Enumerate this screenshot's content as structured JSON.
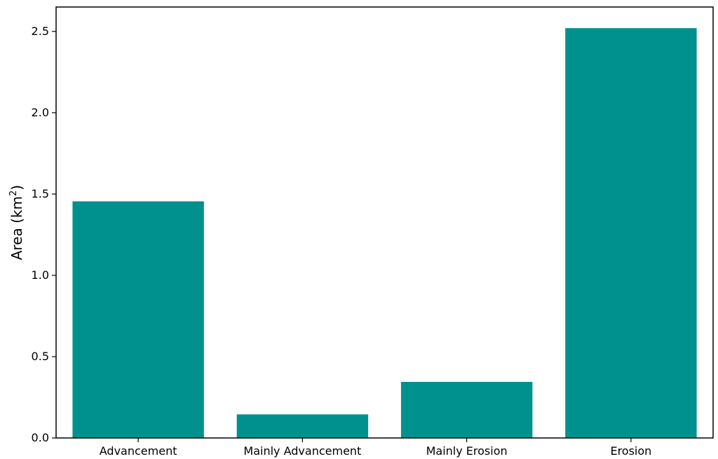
{
  "chart_data": {
    "type": "bar",
    "title": "",
    "xlabel": "",
    "ylabel": "Area (km",
    "ylabel_superscript": "2",
    "ylabel_suffix": ")",
    "categories": [
      "Advancement",
      "Mainly Advancement",
      "Mainly Erosion",
      "Erosion"
    ],
    "values": [
      1.455,
      0.145,
      0.345,
      2.52
    ],
    "ylim": [
      0,
      2.65
    ],
    "yticks": [
      0.0,
      0.5,
      1.0,
      1.5,
      2.0,
      2.5
    ],
    "ytick_labels": [
      "0.0",
      "0.5",
      "1.0",
      "1.5",
      "2.0",
      "2.5"
    ],
    "bar_color": "#00918E",
    "grid": false,
    "legend": "none"
  }
}
